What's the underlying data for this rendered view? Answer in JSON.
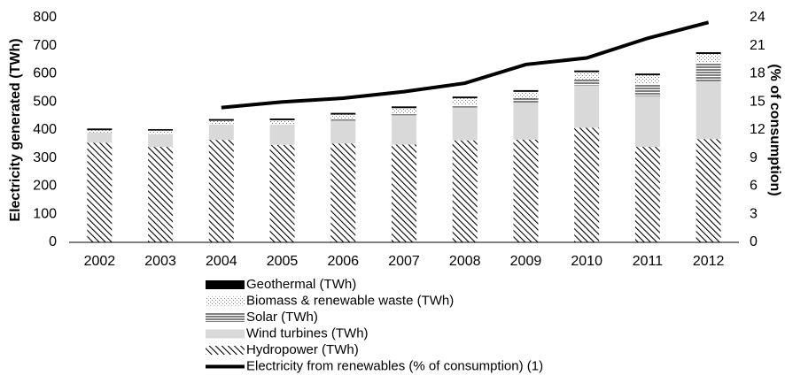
{
  "chart_data": {
    "type": "bar",
    "y_label": "Electricity generated (TWh)",
    "y2_label": "(% of consumption)",
    "categories": [
      "2002",
      "2003",
      "2004",
      "2005",
      "2006",
      "2007",
      "2008",
      "2009",
      "2010",
      "2011",
      "2012"
    ],
    "series": [
      {
        "name": "Hydropower (TWh)",
        "type": "bar",
        "pattern": "diagonal",
        "color": "#000000",
        "values": [
          355,
          340,
          365,
          347,
          352,
          348,
          363,
          366,
          408,
          340,
          368
        ]
      },
      {
        "name": "Wind turbines (TWh)",
        "type": "bar",
        "pattern": "solid",
        "color": "#d9d9d9",
        "values": [
          36,
          45,
          55,
          72,
          82,
          105,
          118,
          132,
          150,
          180,
          205
        ]
      },
      {
        "name": "Solar (TWh)",
        "type": "bar",
        "pattern": "horizontal",
        "color": "#000000",
        "values": [
          0.3,
          1,
          1,
          2,
          3,
          5,
          8,
          14,
          22,
          45,
          68
        ]
      },
      {
        "name": "Biomass & renewable waste (TWh)",
        "type": "bar",
        "pattern": "dots",
        "color": "#808080",
        "values": [
          8,
          12,
          12,
          14,
          18,
          20,
          24,
          24,
          26,
          30,
          30
        ]
      },
      {
        "name": "Geothermal (TWh)",
        "type": "bar",
        "pattern": "solid",
        "color": "#000000",
        "values": [
          6,
          5,
          6,
          6,
          6,
          6,
          6,
          6,
          6,
          6,
          6
        ]
      },
      {
        "name": "Electricity from renewables (% of consumption) (1)",
        "type": "line",
        "axis": "y2",
        "color": "#000000",
        "values": [
          null,
          null,
          14.4,
          15.0,
          15.4,
          16.1,
          17.0,
          19.0,
          19.7,
          21.8,
          23.5
        ]
      }
    ],
    "ylim": [
      0,
      800
    ],
    "yticks": [
      0,
      100,
      200,
      300,
      400,
      500,
      600,
      700,
      800
    ],
    "y2lim": [
      0,
      24
    ],
    "y2ticks": [
      0,
      3,
      6,
      9,
      12,
      15,
      18,
      21,
      24
    ],
    "stacked": true,
    "legend": "bottom"
  }
}
